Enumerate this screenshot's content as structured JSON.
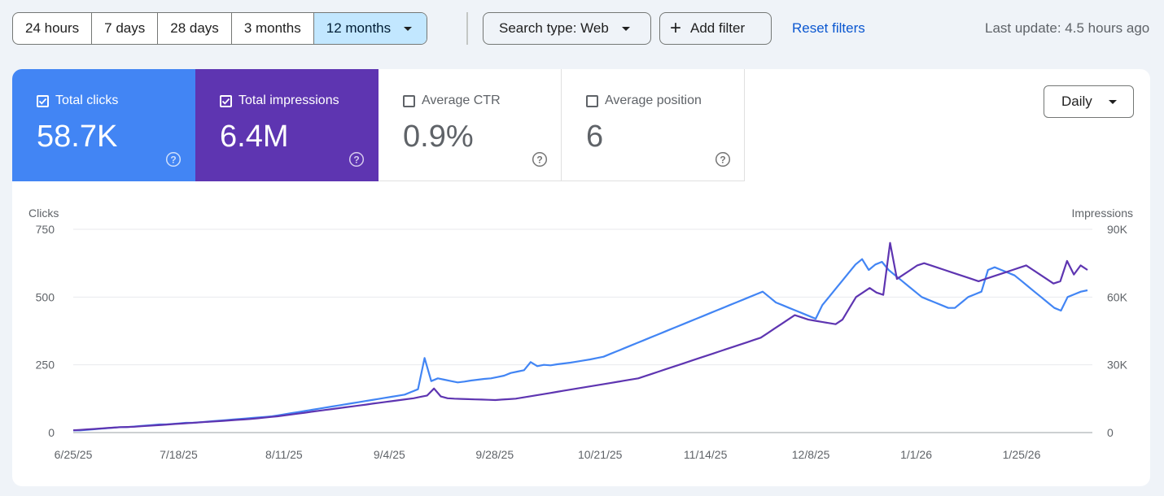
{
  "toolbar": {
    "ranges": [
      "24 hours",
      "7 days",
      "28 days",
      "3 months",
      "12 months"
    ],
    "active_range": "12 months",
    "search_type": "Search type: Web",
    "add_filter": "Add filter",
    "reset_filters": "Reset filters",
    "last_update": "Last update: 4.5 hours ago"
  },
  "metrics": {
    "clicks": {
      "label": "Total clicks",
      "value": "58.7K",
      "checked": true
    },
    "impressions": {
      "label": "Total impressions",
      "value": "6.4M",
      "checked": true
    },
    "ctr": {
      "label": "Average CTR",
      "value": "0.9%",
      "checked": false
    },
    "position": {
      "label": "Average position",
      "value": "6",
      "checked": false
    }
  },
  "granularity": "Daily",
  "colors": {
    "clicks": "#4285f4",
    "impressions": "#5e35b1",
    "accent": "#0b57d0",
    "active_range_bg": "#c2e7ff"
  },
  "chart_data": {
    "type": "line",
    "x_ticks": [
      "6/25/25",
      "7/18/25",
      "8/11/25",
      "9/4/25",
      "9/28/25",
      "10/21/25",
      "11/14/25",
      "12/8/25",
      "1/1/26",
      "1/25/26"
    ],
    "y_left": {
      "label": "Clicks",
      "ticks": [
        "0",
        "250",
        "500",
        "750"
      ],
      "range": [
        0,
        750
      ]
    },
    "y_right": {
      "label": "Impressions",
      "ticks": [
        "0",
        "30K",
        "60K",
        "90K"
      ],
      "range": [
        0,
        90000
      ]
    },
    "grid": true,
    "series": [
      {
        "name": "Clicks",
        "axis": "left",
        "values": [
          8,
          8,
          10,
          12,
          14,
          16,
          18,
          20,
          20,
          22,
          24,
          26,
          28,
          30,
          30,
          32,
          34,
          36,
          36,
          38,
          40,
          42,
          44,
          46,
          48,
          50,
          52,
          54,
          56,
          58,
          60,
          64,
          68,
          72,
          76,
          80,
          84,
          88,
          92,
          96,
          100,
          104,
          108,
          112,
          116,
          120,
          124,
          128,
          132,
          136,
          140,
          150,
          160,
          275,
          190,
          200,
          195,
          190,
          185,
          188,
          192,
          195,
          198,
          200,
          205,
          210,
          220,
          225,
          230,
          260,
          245,
          250,
          248,
          252,
          255,
          258,
          262,
          266,
          270,
          275,
          280,
          290,
          300,
          310,
          320,
          330,
          340,
          350,
          360,
          370,
          380,
          390,
          400,
          410,
          420,
          430,
          440,
          450,
          460,
          470,
          480,
          490,
          500,
          510,
          520,
          500,
          480,
          470,
          460,
          450,
          440,
          430,
          420,
          470,
          500,
          530,
          560,
          590,
          620,
          640,
          600,
          620,
          630,
          600,
          580,
          560,
          540,
          520,
          500,
          490,
          480,
          470,
          460,
          460,
          480,
          500,
          510,
          520,
          600,
          610,
          600,
          590,
          580,
          560,
          540,
          520,
          500,
          480,
          460,
          450,
          500,
          510,
          520,
          525
        ]
      },
      {
        "name": "Impressions",
        "axis": "right",
        "values": [
          1000,
          1200,
          1400,
          1600,
          1800,
          2000,
          2200,
          2400,
          2500,
          2600,
          2800,
          3000,
          3200,
          3400,
          3600,
          3800,
          4000,
          4200,
          4400,
          4600,
          4800,
          5000,
          5200,
          5400,
          5600,
          5800,
          6000,
          6300,
          6600,
          6900,
          7200,
          7600,
          8000,
          8400,
          8800,
          9200,
          9600,
          10000,
          10400,
          10800,
          11200,
          11600,
          12000,
          12400,
          12800,
          13200,
          13600,
          14000,
          14400,
          14800,
          15200,
          15800,
          16400,
          19500,
          16000,
          15200,
          15000,
          14900,
          14800,
          14700,
          14600,
          14500,
          14400,
          14600,
          14800,
          15000,
          15500,
          16000,
          16500,
          17000,
          17500,
          18000,
          18500,
          19000,
          19500,
          20000,
          20500,
          21000,
          21500,
          22000,
          22500,
          23000,
          23500,
          24000,
          25000,
          26000,
          27000,
          28000,
          29000,
          30000,
          31000,
          32000,
          33000,
          34000,
          35000,
          36000,
          37000,
          38000,
          39000,
          40000,
          41000,
          42000,
          44000,
          46000,
          48000,
          50000,
          52000,
          51000,
          50000,
          49500,
          49000,
          48500,
          48000,
          50000,
          55000,
          60000,
          62000,
          64000,
          62000,
          61000,
          84000,
          68000,
          70000,
          72000,
          74000,
          75000,
          74000,
          73000,
          72000,
          71000,
          70000,
          69000,
          68000,
          67000,
          68000,
          69000,
          70000,
          71000,
          72000,
          73000,
          74000,
          72000,
          70000,
          68000,
          66000,
          67000,
          76000,
          70000,
          74000,
          72000
        ]
      }
    ]
  }
}
